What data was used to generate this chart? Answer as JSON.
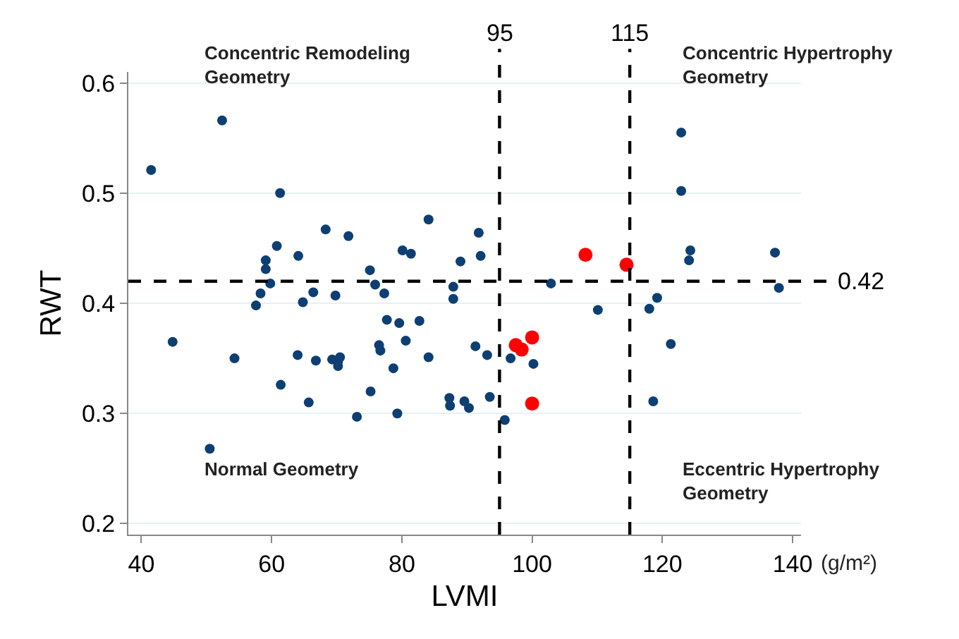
{
  "chart_data": {
    "type": "scatter",
    "xlabel": "LVMI",
    "ylabel": "RWT",
    "xlim": [
      38,
      141.3
    ],
    "ylim": [
      0.19,
      0.61
    ],
    "xticks": [
      40,
      60,
      80,
      100,
      120,
      140
    ],
    "yticks": [
      0.2,
      0.3,
      0.4,
      0.5,
      0.6
    ],
    "grid": "y",
    "marker": "circle",
    "series": [
      {
        "color": "#0d3f73",
        "x": [
          41.5,
          52.4,
          44.8,
          50.5,
          54.3,
          57.6,
          58.3,
          59.1,
          59.1,
          59.8,
          60.8,
          61.3,
          61.4,
          64.1,
          64.0,
          64.8,
          65.7,
          66.4,
          66.8,
          68.3,
          69.3,
          69.8,
          70.2,
          70.2,
          70.5,
          71.8,
          73.1,
          75.1,
          75.2,
          75.9,
          76.5,
          76.7,
          77.3,
          77.7,
          78.7,
          79.3,
          79.6,
          80.1,
          80.6,
          81.4,
          82.7,
          84.1,
          84.1,
          87.3,
          87.4,
          87.9,
          87.9,
          89.0,
          89.6,
          90.3,
          91.3,
          91.8,
          92.1,
          93.1,
          93.5,
          95.8,
          96.7,
          100.2,
          102.9,
          110.1,
          118.0,
          118.6,
          119.2,
          121.3,
          122.9,
          122.9,
          124.3,
          124.1,
          137.3,
          137.9
        ],
        "values": [
          0.521,
          0.566,
          0.365,
          0.268,
          0.35,
          0.398,
          0.409,
          0.439,
          0.431,
          0.418,
          0.452,
          0.5,
          0.326,
          0.443,
          0.353,
          0.401,
          0.31,
          0.41,
          0.348,
          0.467,
          0.349,
          0.407,
          0.347,
          0.343,
          0.351,
          0.461,
          0.297,
          0.43,
          0.32,
          0.417,
          0.362,
          0.357,
          0.409,
          0.385,
          0.341,
          0.3,
          0.382,
          0.448,
          0.366,
          0.445,
          0.384,
          0.476,
          0.351,
          0.314,
          0.307,
          0.415,
          0.404,
          0.438,
          0.311,
          0.305,
          0.361,
          0.464,
          0.443,
          0.353,
          0.315,
          0.294,
          0.35,
          0.345,
          0.418,
          0.394,
          0.395,
          0.311,
          0.405,
          0.363,
          0.555,
          0.502,
          0.448,
          0.439,
          0.446,
          0.414
        ]
      },
      {
        "color": "#ff0000",
        "x": [
          108.2,
          114.5,
          97.5,
          98.4,
          100.0,
          100.0
        ],
        "values": [
          0.444,
          0.435,
          0.362,
          0.358,
          0.369,
          0.309
        ]
      }
    ],
    "ref_lines": [
      {
        "axis": "x",
        "value": 95,
        "label": "95",
        "color": "#000000",
        "line_style": "dashed"
      },
      {
        "axis": "x",
        "value": 115,
        "label": "115",
        "color": "#000000",
        "line_style": "dashed"
      },
      {
        "axis": "y",
        "value": 0.42,
        "label": "0.42",
        "color": "#000000",
        "line_style": "dashed"
      }
    ],
    "annotations": [
      "Concentric Remodeling\nGeometry",
      "Concentric Hypertrophy\nGeometry",
      "Normal Geometry",
      "Eccentric Hypertrophy\nGeometry",
      "(g/m²)"
    ]
  }
}
